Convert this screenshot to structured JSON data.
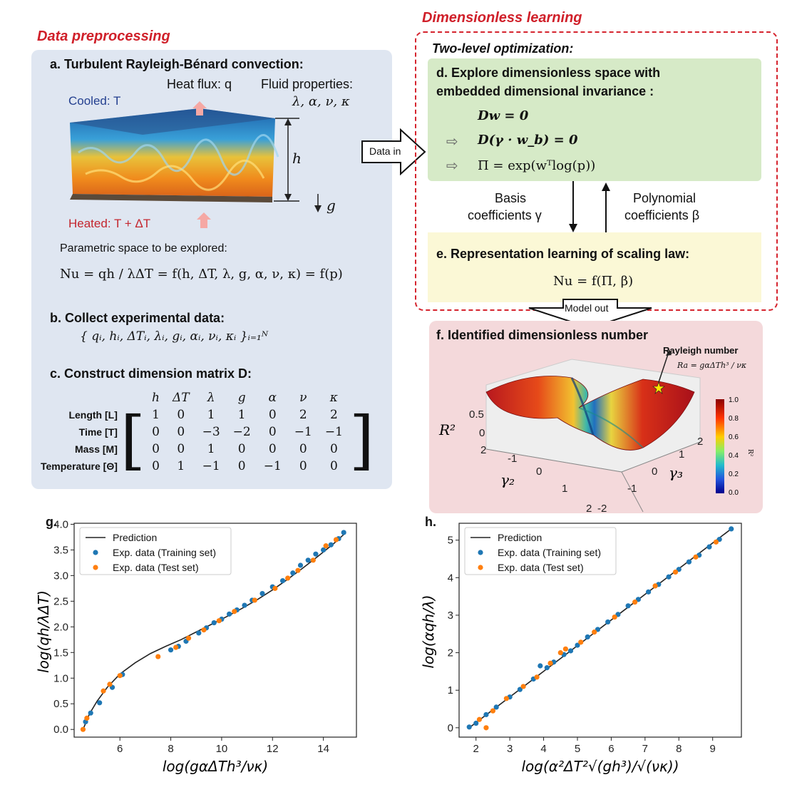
{
  "headings": {
    "left_section": "Data preprocessing",
    "right_section": "Dimensionless learning"
  },
  "panel_a": {
    "title": "a. Turbulent Rayleigh-Bénard convection:",
    "cooled": "Cooled: T",
    "heated": "Heated: T + ΔT",
    "heat_flux": "Heat flux: q",
    "fluid_props_label": "Fluid properties:",
    "fluid_props": "λ, α, ν, κ",
    "h_label": "h",
    "g_label": "g",
    "param_text": "Parametric space to be explored:",
    "equation": "Nu = qh / λΔT = f(h, ΔT, λ, g, α, ν, κ) = f(p)"
  },
  "panel_b": {
    "title": "b. Collect experimental data:",
    "set": "{ qᵢ, hᵢ, ΔTᵢ, λᵢ, gᵢ, αᵢ, νᵢ, κᵢ }ᵢ₌₁ᴺ"
  },
  "panel_c": {
    "title": "c. Construct dimension matrix D:",
    "columns": [
      "h",
      "ΔT",
      "λ",
      "g",
      "α",
      "ν",
      "κ"
    ],
    "rows": [
      {
        "label": "Length [L]",
        "values": [
          "1",
          "0",
          "1",
          "1",
          "0",
          "2",
          "2"
        ]
      },
      {
        "label": "Time [T]",
        "values": [
          "0",
          "0",
          "−3",
          "−2",
          "0",
          "−1",
          "−1"
        ]
      },
      {
        "label": "Mass [M]",
        "values": [
          "0",
          "0",
          "1",
          "0",
          "0",
          "0",
          "0"
        ]
      },
      {
        "label": "Temperature [Θ]",
        "values": [
          "0",
          "1",
          "−1",
          "0",
          "−1",
          "0",
          "0"
        ]
      }
    ]
  },
  "flow": {
    "data_in": "Data in",
    "model_out": "Model out",
    "basis": "Basis",
    "basis_coef": "coefficients γ",
    "poly": "Polynomial",
    "poly_coef": "coefficients β"
  },
  "panel_d": {
    "header": "Two-level optimization:",
    "title_line1": "d. Explore dimensionless space with",
    "title_line2": "embedded dimensional invariance :",
    "eq1": "Dw = 0",
    "eq2": "D(γ · w_b) = 0",
    "eq3": "Π = exp(wᵀlog(p))"
  },
  "panel_e": {
    "title": "e. Representation learning of scaling law:",
    "eq": "Nu = f(Π, β)"
  },
  "panel_f": {
    "title": "f. Identified dimensionless number",
    "annotation": "Rayleigh number",
    "ra_eq": "Ra = gαΔTh³ / νκ",
    "zlabel": "R²",
    "xlabel": "γ₂",
    "ylabel": "γ₃",
    "z_ticks": [
      "0.5",
      "0"
    ],
    "x_ticks": [
      "2",
      "-1",
      "0",
      "1",
      "2"
    ],
    "y_ticks": [
      "2",
      "1",
      "0",
      "-1",
      "-2"
    ],
    "colorbar_ticks": [
      "1.0",
      "0.8",
      "0.6",
      "0.4",
      "0.2",
      "0.0"
    ],
    "colorbar_label": "R²"
  },
  "chart_data": [
    {
      "type": "scatter",
      "panel_label": "g.",
      "xlabel": "log(gαΔTh³/νκ)",
      "ylabel": "log(qh/λΔT)",
      "xlim": [
        4.2,
        15.3
      ],
      "ylim": [
        -0.15,
        4.02
      ],
      "xticks": [
        6,
        8,
        10,
        12,
        14
      ],
      "yticks": [
        0.0,
        0.5,
        1.0,
        1.5,
        2.0,
        2.5,
        3.0,
        3.5,
        4.0
      ],
      "legend": [
        "Prediction",
        "Exp. data (Training set)",
        "Exp. data (Test set)"
      ],
      "legend_position": "top-left",
      "prediction_line": {
        "x": [
          4.55,
          4.8,
          5.1,
          5.5,
          6.0,
          6.6,
          7.2,
          7.8,
          8.4,
          9.0,
          9.6,
          10.2,
          10.8,
          11.4,
          12.0,
          12.6,
          13.2,
          13.8,
          14.4,
          14.8
        ],
        "y": [
          0.0,
          0.3,
          0.55,
          0.82,
          1.08,
          1.3,
          1.48,
          1.62,
          1.75,
          1.9,
          2.05,
          2.2,
          2.36,
          2.53,
          2.72,
          2.93,
          3.15,
          3.38,
          3.62,
          3.8
        ]
      },
      "series": [
        {
          "name": "Exp. data (Training set)",
          "color": "#1f77b4",
          "x": [
            4.65,
            4.85,
            5.2,
            5.7,
            6.1,
            8.0,
            8.3,
            8.6,
            9.1,
            9.4,
            9.7,
            10.0,
            10.3,
            10.6,
            10.9,
            11.2,
            11.6,
            12.0,
            12.4,
            12.8,
            13.1,
            13.4,
            13.7,
            14.0,
            14.3,
            14.6,
            14.8
          ],
          "y": [
            0.15,
            0.32,
            0.52,
            0.82,
            1.07,
            1.55,
            1.62,
            1.72,
            1.88,
            1.98,
            2.08,
            2.15,
            2.25,
            2.33,
            2.42,
            2.52,
            2.65,
            2.78,
            2.9,
            3.05,
            3.2,
            3.3,
            3.42,
            3.5,
            3.6,
            3.72,
            3.84
          ]
        },
        {
          "name": "Exp. data (Test set)",
          "color": "#ff7f0e",
          "x": [
            4.55,
            4.7,
            5.35,
            5.6,
            6.0,
            7.5,
            8.2,
            8.7,
            9.3,
            9.9,
            10.5,
            11.3,
            12.1,
            12.6,
            13.0,
            13.6,
            14.1,
            14.5
          ],
          "y": [
            0.0,
            0.22,
            0.75,
            0.88,
            1.05,
            1.42,
            1.6,
            1.78,
            1.94,
            2.12,
            2.3,
            2.52,
            2.75,
            2.95,
            3.1,
            3.3,
            3.58,
            3.7
          ]
        }
      ]
    },
    {
      "type": "scatter",
      "panel_label": "h.",
      "xlabel": "log(α²ΔT²√(gh³)/√(νκ))",
      "ylabel": "log(αqh/λ)",
      "xlim": [
        1.5,
        9.85
      ],
      "ylim": [
        -0.25,
        5.45
      ],
      "xticks": [
        2,
        3,
        4,
        5,
        6,
        7,
        8,
        9
      ],
      "yticks": [
        0,
        1,
        2,
        3,
        4,
        5
      ],
      "legend": [
        "Prediction",
        "Exp. data (Training set)",
        "Exp. data (Test set)"
      ],
      "legend_position": "top-left",
      "prediction_line": {
        "x": [
          1.8,
          9.55
        ],
        "y": [
          0.0,
          5.3
        ]
      },
      "series": [
        {
          "name": "Exp. data (Training set)",
          "color": "#1f77b4",
          "x": [
            1.8,
            2.0,
            2.3,
            2.6,
            3.0,
            3.3,
            3.7,
            3.9,
            4.1,
            4.3,
            4.6,
            4.8,
            5.0,
            5.3,
            5.6,
            5.9,
            6.2,
            6.5,
            6.8,
            7.1,
            7.4,
            7.7,
            8.0,
            8.3,
            8.6,
            8.9,
            9.2,
            9.55
          ],
          "y": [
            0.02,
            0.12,
            0.35,
            0.55,
            0.82,
            1.02,
            1.3,
            1.65,
            1.6,
            1.75,
            1.95,
            2.05,
            2.2,
            2.42,
            2.62,
            2.82,
            3.02,
            3.25,
            3.42,
            3.62,
            3.82,
            4.02,
            4.22,
            4.42,
            4.6,
            4.82,
            5.02,
            5.3
          ]
        },
        {
          "name": "Exp. data (Test set)",
          "color": "#ff7f0e",
          "x": [
            2.1,
            2.3,
            2.5,
            2.9,
            3.4,
            3.8,
            4.2,
            4.5,
            4.65,
            5.1,
            5.5,
            6.1,
            6.7,
            7.3,
            7.9,
            8.5,
            9.1
          ],
          "y": [
            0.22,
            0.0,
            0.45,
            0.78,
            1.1,
            1.35,
            1.72,
            2.0,
            2.1,
            2.28,
            2.55,
            2.95,
            3.35,
            3.78,
            4.15,
            4.55,
            4.95
          ]
        }
      ]
    }
  ]
}
